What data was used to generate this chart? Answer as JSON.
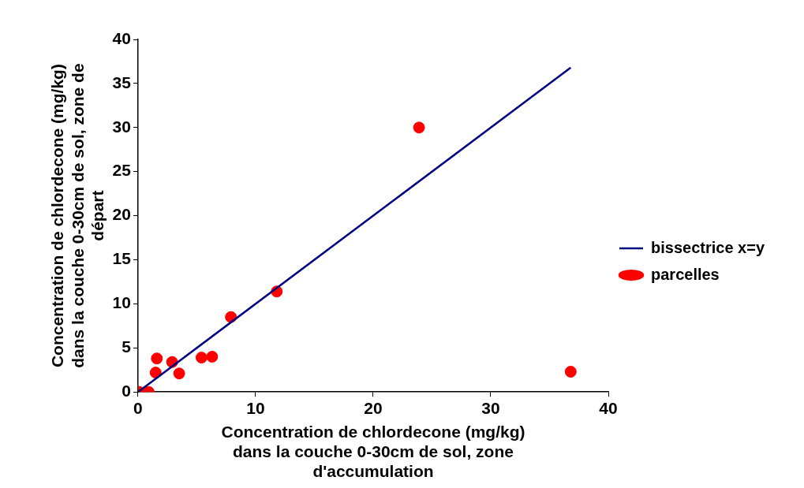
{
  "chart_data": {
    "type": "scatter",
    "xlabel": "Concentration de chlordecone (mg/kg)\ndans la couche 0-30cm de sol, zone\nd'accumulation",
    "ylabel": "Concentration de chlordecone (mg/kg)\ndans la couche 0-30cm de sol, zone de\ndépart",
    "xlim": [
      0,
      40
    ],
    "xticks": [
      0,
      10,
      20,
      30,
      40
    ],
    "ylim": [
      0,
      40
    ],
    "yticks": [
      0,
      5,
      10,
      15,
      20,
      25,
      30,
      35,
      40
    ],
    "grid": false,
    "legend": "right",
    "series": [
      {
        "name": "bissectrice x=y",
        "type": "line",
        "color": "#000080",
        "marker": "none",
        "line_style": "solid",
        "x": [
          0,
          36.8
        ],
        "values": [
          0,
          36.8
        ]
      },
      {
        "name": "parcelles",
        "type": "scatter",
        "color": "#ff0000",
        "marker": "circle",
        "x": [
          0.1,
          0.9,
          1.5,
          1.6,
          2.9,
          3.5,
          5.4,
          6.3,
          7.9,
          11.8,
          23.9,
          36.8
        ],
        "values": [
          0,
          0,
          2.2,
          3.8,
          3.4,
          2.1,
          3.9,
          4.0,
          8.5,
          11.4,
          30.0,
          2.3
        ]
      }
    ]
  }
}
